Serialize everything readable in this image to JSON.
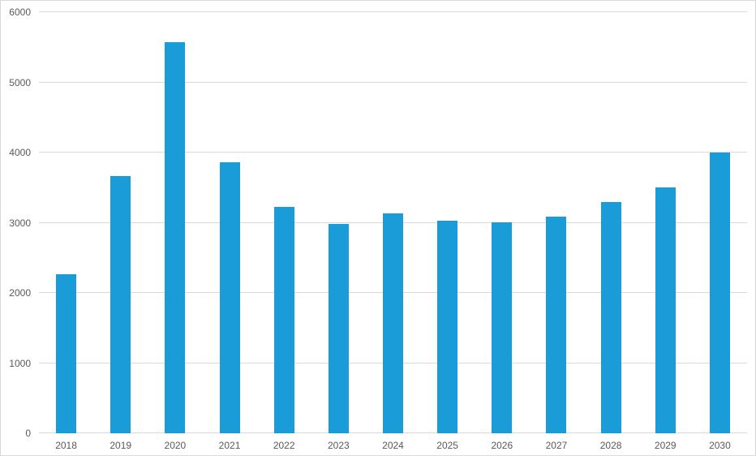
{
  "chart_data": {
    "type": "bar",
    "title": "",
    "xlabel": "",
    "ylabel": "",
    "categories": [
      "2018",
      "2019",
      "2020",
      "2021",
      "2022",
      "2023",
      "2024",
      "2025",
      "2026",
      "2027",
      "2028",
      "2029",
      "2030"
    ],
    "values": [
      2270,
      3660,
      5570,
      3860,
      3230,
      2980,
      3130,
      3030,
      3010,
      3090,
      3290,
      3500,
      4000
    ],
    "ylim": [
      0,
      6000
    ],
    "yticks": [
      0,
      1000,
      2000,
      3000,
      4000,
      5000,
      6000
    ],
    "ytick_labels": [
      "0",
      "1000",
      "2000",
      "3000",
      "4000",
      "5000",
      "6000"
    ],
    "grid": true,
    "legend_position": "none"
  },
  "colors": {
    "bar": "#1A9CD8",
    "gridline": "#D9D9D9",
    "axis_line": "#D9D9D9",
    "tick_label": "#595959",
    "background": "#FFFFFF",
    "frame_border": "#D9D9D9"
  }
}
